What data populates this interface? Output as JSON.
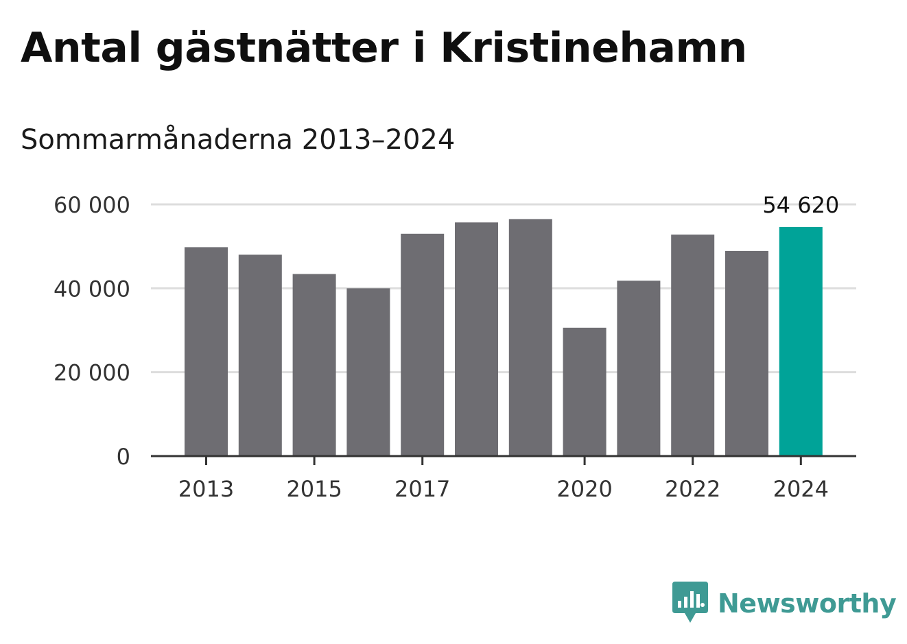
{
  "title": "Antal gästnätter i Kristinehamn",
  "subtitle": "Sommarmånaderna 2013–2024",
  "colors": {
    "bar": "#6e6d72",
    "highlight": "#00a398",
    "grid": "#dddddd",
    "axis": "#333333",
    "brand": "#3f9a94"
  },
  "chart_data": {
    "type": "bar",
    "categories": [
      "2013",
      "2014",
      "2015",
      "2016",
      "2017",
      "2018",
      "2019",
      "2020",
      "2021",
      "2022",
      "2023",
      "2024"
    ],
    "values": [
      49800,
      48000,
      43400,
      40000,
      53000,
      55700,
      56500,
      30600,
      41800,
      52800,
      48900,
      54620
    ],
    "highlight_index": 11,
    "xticks": [
      "2013",
      "2015",
      "2017",
      "2020",
      "2022",
      "2024"
    ],
    "yticks": [
      {
        "value": 0,
        "label": "0"
      },
      {
        "value": 20000,
        "label": "20 000"
      },
      {
        "value": 40000,
        "label": "40 000"
      },
      {
        "value": 60000,
        "label": "60 000"
      }
    ],
    "ylim": [
      0,
      60000
    ],
    "annotation": "54 620",
    "grid": true
  },
  "logo": {
    "icon": "chart-bubble-icon",
    "text": "Newsworthy"
  }
}
